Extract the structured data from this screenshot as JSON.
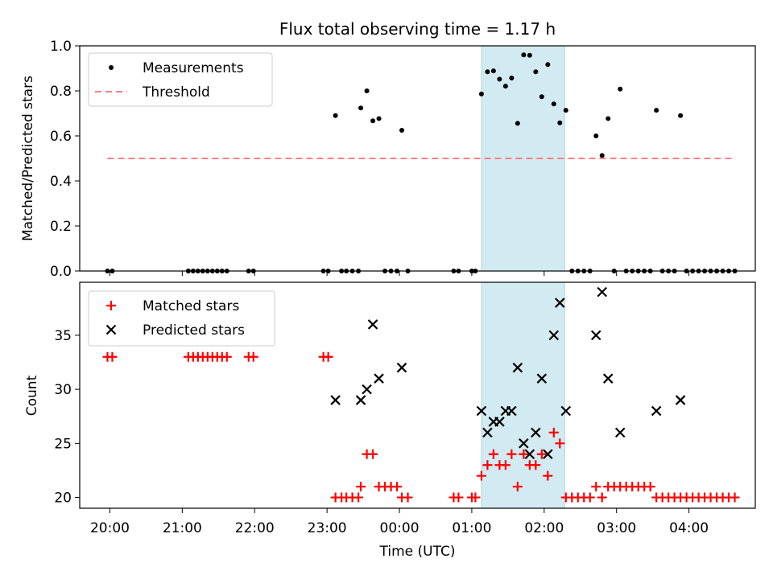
{
  "chart_data": [
    {
      "type": "scatter",
      "title": "Flux total observing time = 1.17 h",
      "ylabel": "Matched/Predicted stars",
      "xlim": [
        "19:35",
        "04:55"
      ],
      "ylim": [
        0,
        1.0
      ],
      "yticks": [
        0.0,
        0.2,
        0.4,
        0.6,
        0.8,
        1.0
      ],
      "ytick_labels": [
        "0.0",
        "0.2",
        "0.4",
        "0.6",
        "0.8",
        "1.0"
      ],
      "highlight_band": {
        "x": [
          "01:08",
          "02:17"
        ],
        "color": "#add8e6"
      },
      "legend": {
        "placement": "top-left",
        "entries": [
          "Measurements",
          "Threshold"
        ]
      },
      "series": [
        {
          "name": "Measurements",
          "marker": "dot",
          "color": "#000000",
          "points": [
            [
              "19:58",
              0
            ],
            [
              "20:02",
              0
            ],
            [
              "21:05",
              0
            ],
            [
              "21:09",
              0
            ],
            [
              "21:13",
              0
            ],
            [
              "21:17",
              0
            ],
            [
              "21:21",
              0
            ],
            [
              "21:25",
              0
            ],
            [
              "21:29",
              0
            ],
            [
              "21:33",
              0
            ],
            [
              "21:37",
              0
            ],
            [
              "21:55",
              0
            ],
            [
              "21:59",
              0
            ],
            [
              "22:57",
              0
            ],
            [
              "23:01",
              0
            ],
            [
              "23:07",
              0.69
            ],
            [
              "23:12",
              0
            ],
            [
              "23:16",
              0
            ],
            [
              "23:21",
              0
            ],
            [
              "23:26",
              0
            ],
            [
              "23:28",
              0.724
            ],
            [
              "23:33",
              0.8
            ],
            [
              "23:38",
              0.667
            ],
            [
              "23:43",
              0.677
            ],
            [
              "23:48",
              0
            ],
            [
              "23:53",
              0
            ],
            [
              "23:58",
              0
            ],
            [
              "00:02",
              0.625
            ],
            [
              "00:07",
              0
            ],
            [
              "00:45",
              0
            ],
            [
              "00:49",
              0
            ],
            [
              "01:00",
              0
            ],
            [
              "01:03",
              0
            ],
            [
              "01:08",
              0.786
            ],
            [
              "01:13",
              0.885
            ],
            [
              "01:18",
              0.889
            ],
            [
              "01:23",
              0.852
            ],
            [
              "01:28",
              0.821
            ],
            [
              "01:33",
              0.857
            ],
            [
              "01:38",
              0.656
            ],
            [
              "01:43",
              0.96
            ],
            [
              "01:48",
              0.958
            ],
            [
              "01:53",
              0.885
            ],
            [
              "01:58",
              0.774
            ],
            [
              "02:03",
              0.917
            ],
            [
              "02:08",
              0.742
            ],
            [
              "02:13",
              0.658
            ],
            [
              "02:18",
              0.714
            ],
            [
              "02:23",
              0
            ],
            [
              "02:28",
              0
            ],
            [
              "02:33",
              0
            ],
            [
              "02:38",
              0
            ],
            [
              "02:43",
              0.6
            ],
            [
              "02:48",
              0.513
            ],
            [
              "02:53",
              0.677
            ],
            [
              "02:58",
              0
            ],
            [
              "03:03",
              0.808
            ],
            [
              "03:08",
              0
            ],
            [
              "03:13",
              0
            ],
            [
              "03:18",
              0
            ],
            [
              "03:23",
              0
            ],
            [
              "03:28",
              0
            ],
            [
              "03:33",
              0.714
            ],
            [
              "03:38",
              0
            ],
            [
              "03:43",
              0
            ],
            [
              "03:48",
              0
            ],
            [
              "03:53",
              0.69
            ],
            [
              "03:58",
              0
            ],
            [
              "04:03",
              0
            ],
            [
              "04:08",
              0
            ],
            [
              "04:13",
              0
            ],
            [
              "04:18",
              0
            ],
            [
              "04:23",
              0
            ],
            [
              "04:28",
              0
            ],
            [
              "04:33",
              0
            ],
            [
              "04:38",
              0
            ]
          ]
        },
        {
          "name": "Threshold",
          "marker": "dashed-line",
          "color": "#ff7f7f",
          "points": [
            [
              "19:58",
              0.5
            ],
            [
              "04:38",
              0.5
            ]
          ]
        }
      ]
    },
    {
      "type": "scatter",
      "xlabel": "Time (UTC)",
      "ylabel": "Count",
      "xlim": [
        "19:35",
        "04:55"
      ],
      "ylim": [
        19,
        39.9
      ],
      "yticks": [
        20,
        25,
        30,
        35
      ],
      "ytick_labels": [
        "20",
        "25",
        "30",
        "35"
      ],
      "xticks": [
        "20:00",
        "21:00",
        "22:00",
        "23:00",
        "00:00",
        "01:00",
        "02:00",
        "03:00",
        "04:00"
      ],
      "highlight_band": {
        "x": [
          "01:08",
          "02:17"
        ],
        "color": "#add8e6"
      },
      "legend": {
        "placement": "top-left",
        "entries": [
          "Matched stars",
          "Predicted stars"
        ]
      },
      "series": [
        {
          "name": "Matched stars",
          "marker": "plus",
          "color": "#ff0000",
          "points": [
            [
              "19:58",
              33
            ],
            [
              "20:02",
              33
            ],
            [
              "21:05",
              33
            ],
            [
              "21:09",
              33
            ],
            [
              "21:13",
              33
            ],
            [
              "21:17",
              33
            ],
            [
              "21:21",
              33
            ],
            [
              "21:25",
              33
            ],
            [
              "21:29",
              33
            ],
            [
              "21:33",
              33
            ],
            [
              "21:37",
              33
            ],
            [
              "21:55",
              33
            ],
            [
              "21:59",
              33
            ],
            [
              "22:57",
              33
            ],
            [
              "23:01",
              33
            ],
            [
              "23:07",
              20
            ],
            [
              "23:12",
              20
            ],
            [
              "23:16",
              20
            ],
            [
              "23:21",
              20
            ],
            [
              "23:26",
              20
            ],
            [
              "23:28",
              21
            ],
            [
              "23:33",
              24
            ],
            [
              "23:38",
              24
            ],
            [
              "23:43",
              21
            ],
            [
              "23:48",
              21
            ],
            [
              "23:53",
              21
            ],
            [
              "23:58",
              21
            ],
            [
              "00:02",
              20
            ],
            [
              "00:07",
              20
            ],
            [
              "00:45",
              20
            ],
            [
              "00:49",
              20
            ],
            [
              "01:00",
              20
            ],
            [
              "01:03",
              20
            ],
            [
              "01:08",
              22
            ],
            [
              "01:13",
              23
            ],
            [
              "01:18",
              24
            ],
            [
              "01:23",
              23
            ],
            [
              "01:28",
              23
            ],
            [
              "01:33",
              24
            ],
            [
              "01:38",
              21
            ],
            [
              "01:43",
              24
            ],
            [
              "01:48",
              23
            ],
            [
              "01:53",
              23
            ],
            [
              "01:58",
              24
            ],
            [
              "02:03",
              22
            ],
            [
              "02:08",
              26
            ],
            [
              "02:13",
              25
            ],
            [
              "02:18",
              20
            ],
            [
              "02:23",
              20
            ],
            [
              "02:28",
              20
            ],
            [
              "02:33",
              20
            ],
            [
              "02:38",
              20
            ],
            [
              "02:43",
              21
            ],
            [
              "02:48",
              20
            ],
            [
              "02:53",
              21
            ],
            [
              "02:58",
              21
            ],
            [
              "03:03",
              21
            ],
            [
              "03:08",
              21
            ],
            [
              "03:13",
              21
            ],
            [
              "03:18",
              21
            ],
            [
              "03:23",
              21
            ],
            [
              "03:28",
              21
            ],
            [
              "03:33",
              20
            ],
            [
              "03:38",
              20
            ],
            [
              "03:43",
              20
            ],
            [
              "03:48",
              20
            ],
            [
              "03:53",
              20
            ],
            [
              "03:58",
              20
            ],
            [
              "04:03",
              20
            ],
            [
              "04:08",
              20
            ],
            [
              "04:13",
              20
            ],
            [
              "04:18",
              20
            ],
            [
              "04:23",
              20
            ],
            [
              "04:28",
              20
            ],
            [
              "04:33",
              20
            ],
            [
              "04:38",
              20
            ]
          ]
        },
        {
          "name": "Predicted stars",
          "marker": "x",
          "color": "#000000",
          "points": [
            [
              "23:07",
              29
            ],
            [
              "23:28",
              29
            ],
            [
              "23:33",
              30
            ],
            [
              "23:38",
              36
            ],
            [
              "23:43",
              31
            ],
            [
              "00:02",
              32
            ],
            [
              "01:08",
              28
            ],
            [
              "01:13",
              26
            ],
            [
              "01:18",
              27
            ],
            [
              "01:23",
              27
            ],
            [
              "01:28",
              28
            ],
            [
              "01:33",
              28
            ],
            [
              "01:38",
              32
            ],
            [
              "01:43",
              25
            ],
            [
              "01:48",
              24
            ],
            [
              "01:53",
              26
            ],
            [
              "01:58",
              31
            ],
            [
              "02:03",
              24
            ],
            [
              "02:08",
              35
            ],
            [
              "02:13",
              38
            ],
            [
              "02:18",
              28
            ],
            [
              "02:43",
              35
            ],
            [
              "02:48",
              39
            ],
            [
              "02:53",
              31
            ],
            [
              "03:03",
              26
            ],
            [
              "03:33",
              28
            ],
            [
              "03:53",
              29
            ]
          ]
        }
      ]
    }
  ]
}
